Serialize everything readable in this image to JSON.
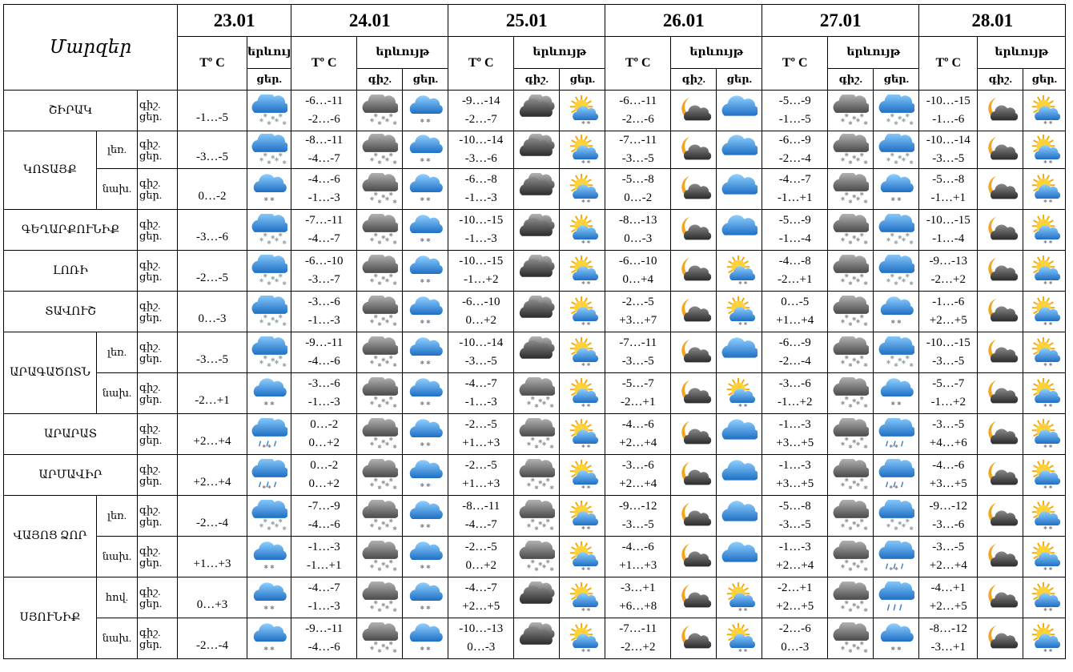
{
  "header": {
    "regions_title": "Մարզեր",
    "temp_label": "Tº C",
    "phenomenon_label": "երևույթ",
    "phenomenon_label_short": "երևույ",
    "night_label": "գիշ.",
    "day_label": "ցեր.",
    "dates": [
      "23.01",
      "24.01",
      "25.01",
      "26.01",
      "27.01",
      "28.01"
    ]
  },
  "rows": [
    {
      "region": "ՇԻՐԱԿ",
      "sub": "",
      "nd": [
        "գիշ.",
        "ցեր."
      ],
      "d0": {
        "t": "-1…-5",
        "d": "snowcloud"
      },
      "days": [
        {
          "tn": "-6…-11",
          "td": "-2…-6",
          "n": "snowgray",
          "d": "snowblue"
        },
        {
          "tn": "-9…-14",
          "td": "-2…-7",
          "n": "darkcloud",
          "d": "sunsnow"
        },
        {
          "tn": "-6…-11",
          "td": "-2…-6",
          "n": "moon",
          "d": "bluecloud"
        },
        {
          "tn": "-5…-9",
          "td": "-1…-5",
          "n": "snowgray",
          "d": "snowcloud"
        },
        {
          "tn": "-10…-15",
          "td": "-1…-6",
          "n": "moon",
          "d": "sunsnow"
        }
      ]
    },
    {
      "region": "ԿՈՏԱՅՔ",
      "sub": "լեռ.",
      "nd": [
        "գիշ.",
        "ցեր."
      ],
      "d0": {
        "t": "-3…-5",
        "d": "snowcloud"
      },
      "days": [
        {
          "tn": "-8…-11",
          "td": "-4…-7",
          "n": "snowgray",
          "d": "snowblue"
        },
        {
          "tn": "-10…-14",
          "td": "-3…-6",
          "n": "darkcloud",
          "d": "sunsnow"
        },
        {
          "tn": "-7…-11",
          "td": "-3…-5",
          "n": "moon",
          "d": "bluecloud"
        },
        {
          "tn": "-6…-9",
          "td": "-2…-4",
          "n": "snowgray",
          "d": "snowcloud"
        },
        {
          "tn": "-10…-14",
          "td": "-3…-5",
          "n": "moon",
          "d": "sunsnow"
        }
      ]
    },
    {
      "region": "",
      "sub": "նախ.",
      "nd": [
        "գիշ.",
        "ցեր."
      ],
      "d0": {
        "t": "0…-2",
        "d": "snowblue"
      },
      "days": [
        {
          "tn": "-4…-6",
          "td": "-1…-3",
          "n": "snowgray",
          "d": "snowblue"
        },
        {
          "tn": "-6…-8",
          "td": "-1…-3",
          "n": "darkcloud",
          "d": "sunsnow"
        },
        {
          "tn": "-5…-8",
          "td": "0…-2",
          "n": "moon",
          "d": "bluecloud"
        },
        {
          "tn": "-4…-7",
          "td": "-1…+1",
          "n": "snowgray",
          "d": "snowblue"
        },
        {
          "tn": "-5…-8",
          "td": "-1…+1",
          "n": "moon",
          "d": "sunsnow"
        }
      ]
    },
    {
      "region": "ԳԵՂԱՐՔՈՒՆԻՔ",
      "sub": "",
      "nd": [
        "գիշ.",
        "ցեր."
      ],
      "d0": {
        "t": "-3…-6",
        "d": "snowcloud"
      },
      "days": [
        {
          "tn": "-7…-11",
          "td": "-4…-7",
          "n": "snowgray",
          "d": "snowblue"
        },
        {
          "tn": "-10…-15",
          "td": "-1…-3",
          "n": "darkcloud",
          "d": "sunsnow"
        },
        {
          "tn": "-8…-13",
          "td": "0…-3",
          "n": "moon",
          "d": "bluecloud"
        },
        {
          "tn": "-5…-9",
          "td": "-1…-4",
          "n": "snowgray",
          "d": "snowcloud"
        },
        {
          "tn": "-10…-15",
          "td": "-1…-4",
          "n": "moon",
          "d": "sunsnow"
        }
      ]
    },
    {
      "region": "ԼՈՌԻ",
      "sub": "",
      "nd": [
        "գիշ.",
        "ցեր."
      ],
      "d0": {
        "t": "-2…-5",
        "d": "snowcloud"
      },
      "days": [
        {
          "tn": "-6…-10",
          "td": "-3…-7",
          "n": "snowgray",
          "d": "snowblue"
        },
        {
          "tn": "-10…-15",
          "td": "-1…+2",
          "n": "darkcloud",
          "d": "sunsnow"
        },
        {
          "tn": "-6…-10",
          "td": "0…+4",
          "n": "moon",
          "d": "sunsnow"
        },
        {
          "tn": "-4…-8",
          "td": "-2…+1",
          "n": "snowgray",
          "d": "snowcloud"
        },
        {
          "tn": "-9…-13",
          "td": "-2…+2",
          "n": "moon",
          "d": "sunsnow"
        }
      ]
    },
    {
      "region": "ՏԱՎՈՒՇ",
      "sub": "",
      "nd": [
        "գիշ.",
        "ցեր."
      ],
      "d0": {
        "t": "0…-3",
        "d": "snowcloud"
      },
      "days": [
        {
          "tn": "-3…-6",
          "td": "-1…-3",
          "n": "snowgray",
          "d": "snowblue"
        },
        {
          "tn": "-6…-10",
          "td": "0…+2",
          "n": "darkcloud",
          "d": "sunsnow"
        },
        {
          "tn": "-2…-5",
          "td": "+3…+7",
          "n": "moon",
          "d": "sunsnow"
        },
        {
          "tn": "0…-5",
          "td": "+1…+4",
          "n": "snowgray",
          "d": "snowblue"
        },
        {
          "tn": "-1…-6",
          "td": "+2…+5",
          "n": "moon",
          "d": "sunsnow"
        }
      ]
    },
    {
      "region": "ԱՐԱԳԱԾՈՏՆ",
      "sub": "լեռ.",
      "nd": [
        "գիշ.",
        "ցեր."
      ],
      "d0": {
        "t": "-3…-5",
        "d": "snowcloud"
      },
      "days": [
        {
          "tn": "-9…-11",
          "td": "-4…-6",
          "n": "snowgray",
          "d": "snowblue"
        },
        {
          "tn": "-10…-14",
          "td": "-3…-5",
          "n": "darkcloud",
          "d": "sunsnow"
        },
        {
          "tn": "-7…-11",
          "td": "-3…-5",
          "n": "moon",
          "d": "bluecloud"
        },
        {
          "tn": "-6…-9",
          "td": "-2…-4",
          "n": "snowgray",
          "d": "snowcloud"
        },
        {
          "tn": "-10…-15",
          "td": "-3…-5",
          "n": "moon",
          "d": "sunsnow"
        }
      ]
    },
    {
      "region": "",
      "sub": "նախ.",
      "nd": [
        "գիշ.",
        "ցեր."
      ],
      "d0": {
        "t": "-2…+1",
        "d": "snowblue"
      },
      "days": [
        {
          "tn": "-3…-6",
          "td": "-1…-3",
          "n": "snowgray",
          "d": "snowblue"
        },
        {
          "tn": "-4…-7",
          "td": "-1…-3",
          "n": "snowgray",
          "d": "sunsnow"
        },
        {
          "tn": "-5…-7",
          "td": "-2…+1",
          "n": "moon",
          "d": "sunsnow"
        },
        {
          "tn": "-3…-6",
          "td": "-1…+2",
          "n": "snowgray",
          "d": "snowblue"
        },
        {
          "tn": "-5…-7",
          "td": "-1…+2",
          "n": "moon",
          "d": "sunsnow"
        }
      ]
    },
    {
      "region": "ԱՐԱՐԱՏ",
      "sub": "",
      "nd": [
        "գիշ.",
        "ցեր."
      ],
      "d0": {
        "t": "+2…+4",
        "d": "rainsnow"
      },
      "days": [
        {
          "tn": "0…-2",
          "td": "0…+2",
          "n": "snowgray",
          "d": "snowblue"
        },
        {
          "tn": "-2…-5",
          "td": "+1…+3",
          "n": "snowgray",
          "d": "sunsnow"
        },
        {
          "tn": "-4…-6",
          "td": "+2…+4",
          "n": "moon",
          "d": "bluecloud"
        },
        {
          "tn": "-1…-3",
          "td": "+3…+5",
          "n": "snowgray",
          "d": "rainsnow"
        },
        {
          "tn": "-3…-5",
          "td": "+4…+6",
          "n": "moon",
          "d": "sunsnow"
        }
      ]
    },
    {
      "region": "ԱՐՄԱՎԻՐ",
      "sub": "",
      "nd": [
        "գիշ.",
        "ցեր."
      ],
      "d0": {
        "t": "+2…+4",
        "d": "rainsnow"
      },
      "days": [
        {
          "tn": "0…-2",
          "td": "0…+2",
          "n": "snowgray",
          "d": "snowblue"
        },
        {
          "tn": "-2…-5",
          "td": "+1…+3",
          "n": "snowgray",
          "d": "sunsnow"
        },
        {
          "tn": "-3…-6",
          "td": "+2…+4",
          "n": "moon",
          "d": "bluecloud"
        },
        {
          "tn": "-1…-3",
          "td": "+3…+5",
          "n": "snowgray",
          "d": "rainsnow"
        },
        {
          "tn": "-4…-6",
          "td": "+3…+5",
          "n": "moon",
          "d": "sunsnow"
        }
      ]
    },
    {
      "region": "ՎԱՅՈՑ ՁՈՐ",
      "sub": "լեռ.",
      "nd": [
        "գիշ.",
        "ցեր."
      ],
      "d0": {
        "t": "-2…-4",
        "d": "snowcloud"
      },
      "days": [
        {
          "tn": "-7…-9",
          "td": "-4…-6",
          "n": "snowgray",
          "d": "snowblue"
        },
        {
          "tn": "-8…-11",
          "td": "-4…-7",
          "n": "snowgray",
          "d": "sunsnow"
        },
        {
          "tn": "-9…-12",
          "td": "-3…-5",
          "n": "moon",
          "d": "bluecloud"
        },
        {
          "tn": "-5…-8",
          "td": "-3…-5",
          "n": "snowgray",
          "d": "snowcloud"
        },
        {
          "tn": "-9…-12",
          "td": "-3…-6",
          "n": "moon",
          "d": "sunsnow"
        }
      ]
    },
    {
      "region": "",
      "sub": "նախ.",
      "nd": [
        "գիշ.",
        "ցեր."
      ],
      "d0": {
        "t": "+1…+3",
        "d": "snowblue"
      },
      "days": [
        {
          "tn": "-1…-3",
          "td": "-1…+1",
          "n": "snowgray",
          "d": "snowblue"
        },
        {
          "tn": "-2…-5",
          "td": "0…+2",
          "n": "snowgray",
          "d": "sunsnow"
        },
        {
          "tn": "-4…-6",
          "td": "+1…+3",
          "n": "moon",
          "d": "bluecloud"
        },
        {
          "tn": "-1…-3",
          "td": "+2…+4",
          "n": "snowgray",
          "d": "rainsnow"
        },
        {
          "tn": "-3…-5",
          "td": "+2…+4",
          "n": "moon",
          "d": "sunsnow"
        }
      ]
    },
    {
      "region": "ՍՅՈՒՆԻՔ",
      "sub": "հով.",
      "nd": [
        "գիշ.",
        "ցեր."
      ],
      "d0": {
        "t": "0…+3",
        "d": "snowblue"
      },
      "days": [
        {
          "tn": "-4…-7",
          "td": "-1…-3",
          "n": "snowgray",
          "d": "snowblue"
        },
        {
          "tn": "-4…-7",
          "td": "+2…+5",
          "n": "darkcloud",
          "d": "sunsnow"
        },
        {
          "tn": "-3…+1",
          "td": "+6…+8",
          "n": "moon",
          "d": "sunsnow"
        },
        {
          "tn": "-2…+1",
          "td": "+2…+5",
          "n": "snowgray",
          "d": "rainblue"
        },
        {
          "tn": "-4…+1",
          "td": "+2…+5",
          "n": "moon",
          "d": "sunsnow"
        }
      ]
    },
    {
      "region": "",
      "sub": "նախ.",
      "nd": [
        "գիշ.",
        "ցեր."
      ],
      "d0": {
        "t": "-2…-4",
        "d": "snowblue"
      },
      "days": [
        {
          "tn": "-9…-11",
          "td": "-4…-6",
          "n": "snowgray",
          "d": "snowblue"
        },
        {
          "tn": "-10…-13",
          "td": "0…-3",
          "n": "darkcloud",
          "d": "sunsnow"
        },
        {
          "tn": "-7…-11",
          "td": "-2…+2",
          "n": "moon",
          "d": "sunsnow"
        },
        {
          "tn": "-2…-6",
          "td": "0…-3",
          "n": "snowgray",
          "d": "snowblue"
        },
        {
          "tn": "-8…-12",
          "td": "-3…+1",
          "n": "moon",
          "d": "sunsnow"
        }
      ]
    }
  ],
  "colors": {
    "border": "#000000",
    "cloud_blue": "#3b8fd9",
    "cloud_gray": "#6b6b6b",
    "sun": "#f5b800",
    "moon": "#f0a020"
  }
}
